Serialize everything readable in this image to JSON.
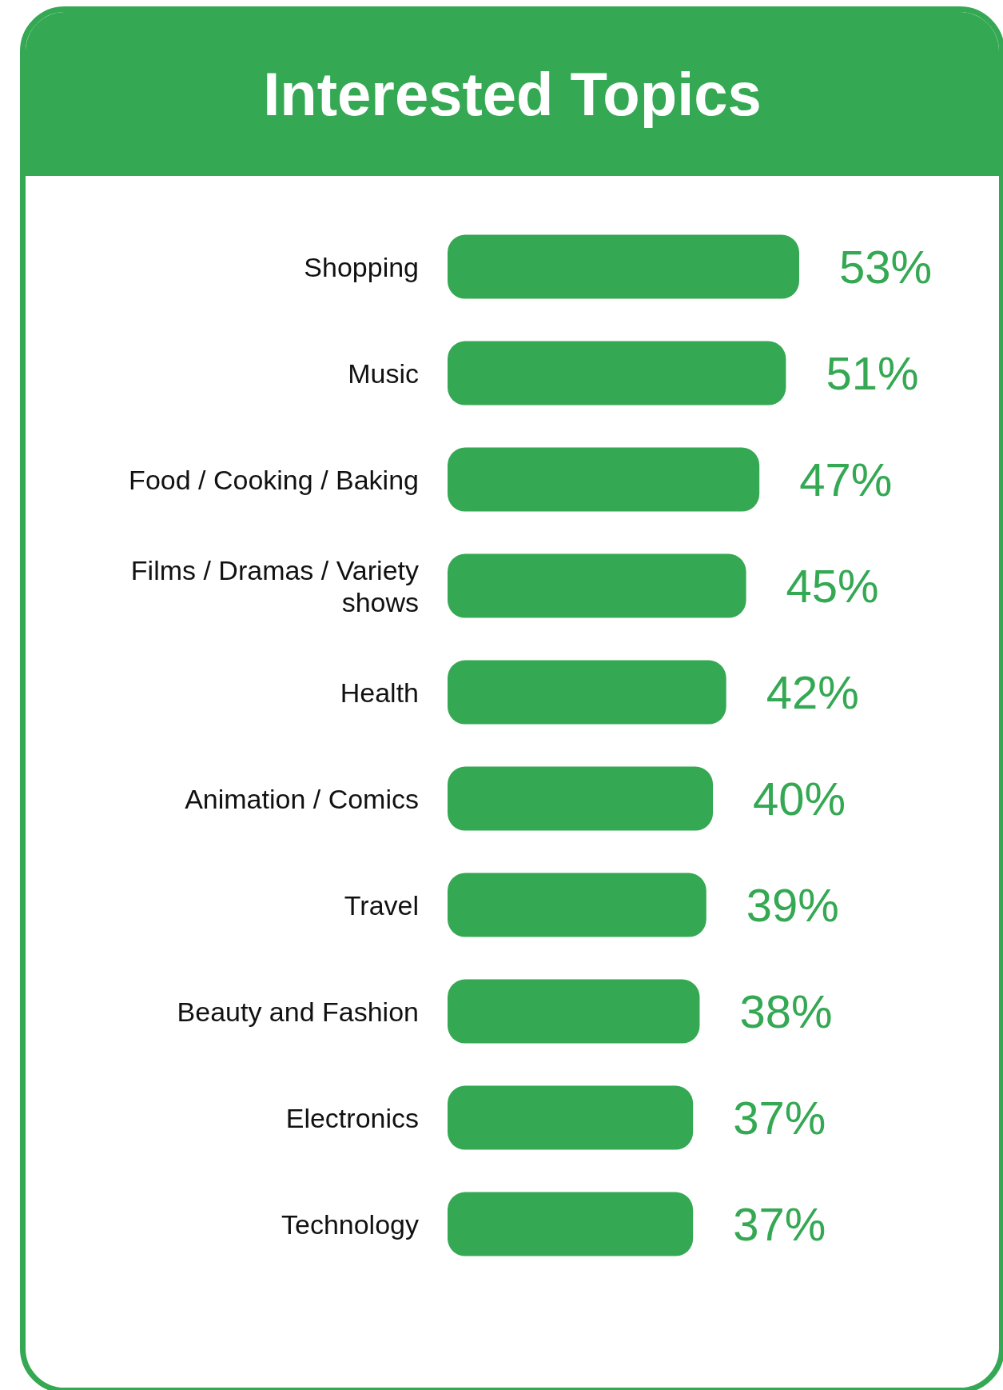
{
  "chart_data": {
    "type": "bar",
    "orientation": "horizontal",
    "title": "Interested Topics",
    "categories": [
      "Shopping",
      "Music",
      "Food / Cooking / Baking",
      "Films / Dramas / Variety shows",
      "Health",
      "Animation / Comics",
      "Travel",
      "Beauty and Fashion",
      "Electronics",
      "Technology"
    ],
    "values": [
      53,
      51,
      47,
      45,
      42,
      40,
      39,
      38,
      37,
      37
    ],
    "value_labels": [
      "53%",
      "51%",
      "47%",
      "45%",
      "42%",
      "40%",
      "39%",
      "38%",
      "37%",
      "37%"
    ],
    "color": "#34a853"
  }
}
